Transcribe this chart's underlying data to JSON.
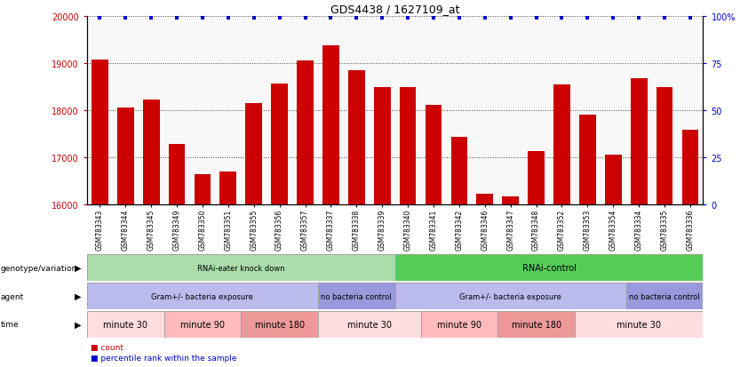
{
  "title": "GDS4438 / 1627109_at",
  "samples": [
    "GSM783343",
    "GSM783344",
    "GSM783345",
    "GSM783349",
    "GSM783350",
    "GSM783351",
    "GSM783355",
    "GSM783356",
    "GSM783357",
    "GSM783337",
    "GSM783338",
    "GSM783339",
    "GSM783340",
    "GSM783341",
    "GSM783342",
    "GSM783346",
    "GSM783347",
    "GSM783348",
    "GSM783352",
    "GSM783353",
    "GSM783354",
    "GSM783334",
    "GSM783335",
    "GSM783336"
  ],
  "counts": [
    19080,
    18060,
    18230,
    17280,
    16640,
    16710,
    18160,
    18560,
    19060,
    19380,
    18840,
    18490,
    18490,
    18120,
    17430,
    16230,
    16180,
    17140,
    18550,
    17900,
    17070,
    18680,
    18490,
    17580
  ],
  "percentile": [
    99,
    99,
    99,
    99,
    99,
    99,
    99,
    99,
    99,
    99,
    99,
    99,
    99,
    99,
    99,
    99,
    99,
    99,
    99,
    99,
    99,
    99,
    99,
    99
  ],
  "bar_color": "#cc0000",
  "dot_color": "#0000cc",
  "ylim_left": [
    16000,
    20000
  ],
  "yticks_left": [
    16000,
    17000,
    18000,
    19000,
    20000
  ],
  "yticks_right": [
    0,
    25,
    50,
    75,
    100
  ],
  "ylim_right": [
    0,
    100
  ],
  "genotype_groups": [
    {
      "label": "RNAi-eater knock down",
      "start": 0,
      "end": 12,
      "color": "#aaddaa"
    },
    {
      "label": "RNAi-control",
      "start": 12,
      "end": 24,
      "color": "#55cc55"
    }
  ],
  "agent_groups": [
    {
      "label": "Gram+/- bacteria exposure",
      "start": 0,
      "end": 9,
      "color": "#bbbbee"
    },
    {
      "label": "no bacteria control",
      "start": 9,
      "end": 12,
      "color": "#9999dd"
    },
    {
      "label": "Gram+/- bacteria exposure",
      "start": 12,
      "end": 21,
      "color": "#bbbbee"
    },
    {
      "label": "no bacteria control",
      "start": 21,
      "end": 24,
      "color": "#9999dd"
    }
  ],
  "time_groups": [
    {
      "label": "minute 30",
      "start": 0,
      "end": 3,
      "color": "#ffdddd"
    },
    {
      "label": "minute 90",
      "start": 3,
      "end": 6,
      "color": "#ffbbbb"
    },
    {
      "label": "minute 180",
      "start": 6,
      "end": 9,
      "color": "#ee9999"
    },
    {
      "label": "minute 30",
      "start": 9,
      "end": 13,
      "color": "#ffdddd"
    },
    {
      "label": "minute 90",
      "start": 13,
      "end": 16,
      "color": "#ffbbbb"
    },
    {
      "label": "minute 180",
      "start": 16,
      "end": 19,
      "color": "#ee9999"
    },
    {
      "label": "minute 30",
      "start": 19,
      "end": 24,
      "color": "#ffdddd"
    }
  ],
  "row_labels": [
    "genotype/variation",
    "agent",
    "time"
  ],
  "legend_items": [
    {
      "label": "count",
      "color": "#cc0000"
    },
    {
      "label": "percentile rank within the sample",
      "color": "#0000cc"
    }
  ],
  "bg_color": "#f0f0f0"
}
